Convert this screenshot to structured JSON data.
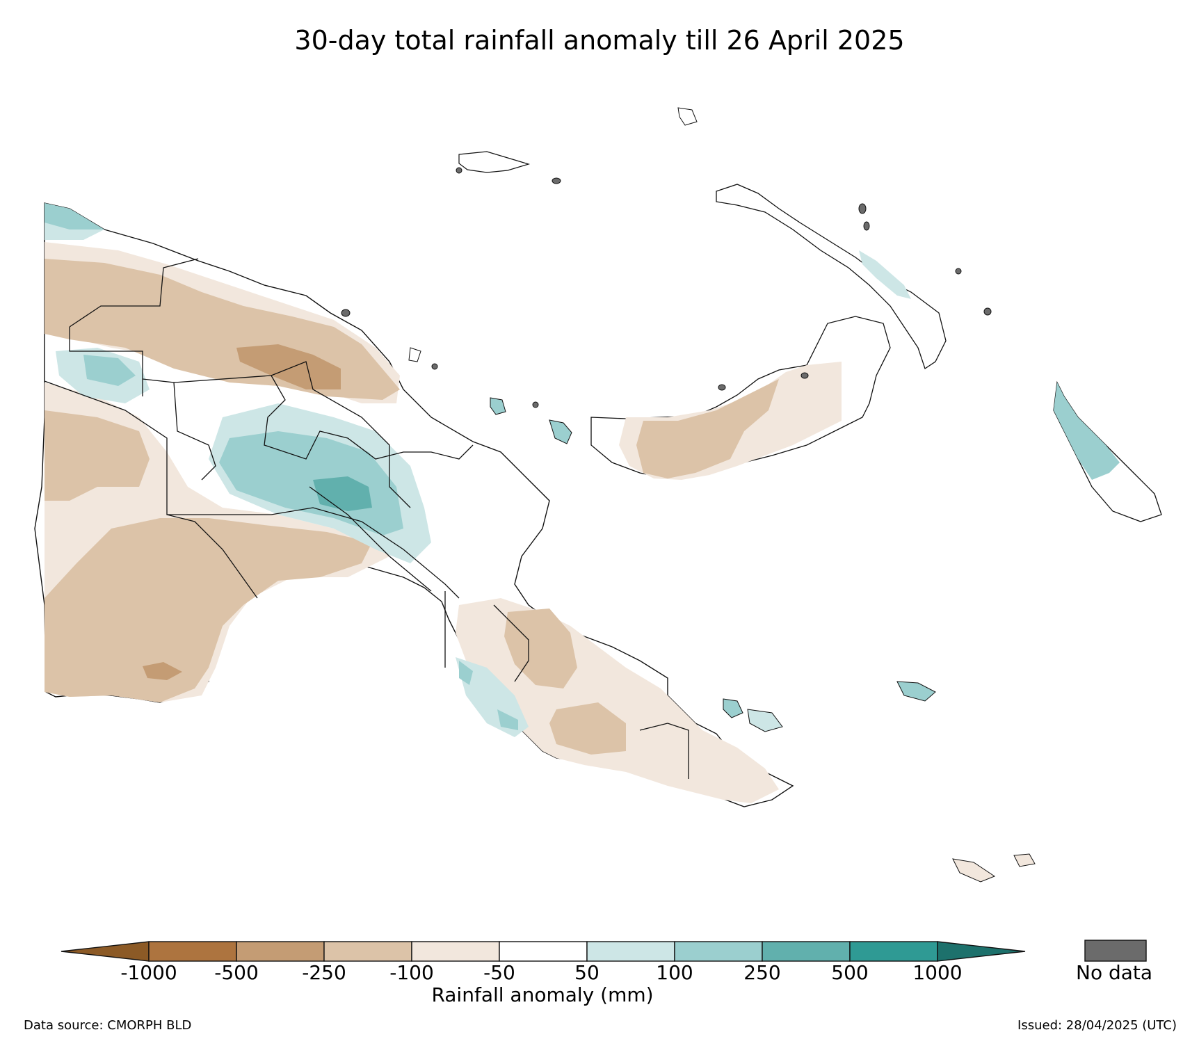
{
  "title": "30-day total rainfall anomaly till 26 April 2025",
  "colorbar": {
    "label": "Rainfall anomaly (mm)",
    "ticks": [
      "-1000",
      "-500",
      "-250",
      "-100",
      "-50",
      "50",
      "100",
      "250",
      "500",
      "1000"
    ],
    "colors": {
      "lt_neg1000": "#8c5a26",
      "neg1000_neg500": "#ad743f",
      "neg500_neg250": "#c49c74",
      "neg250_neg100": "#dcc3a8",
      "neg100_neg50": "#f2e7dd",
      "neg50_50": "#ffffff",
      "50_100": "#cde6e6",
      "100_250": "#9bcfcf",
      "250_500": "#61b0ad",
      "500_1000": "#2f9a94",
      "gt_1000": "#1d716c"
    },
    "no_data_label": "No data",
    "no_data_color": "#6b6b6b"
  },
  "footer": {
    "source": "Data source: CMORPH BLD",
    "issued": "Issued: 28/04/2025 (UTC)"
  }
}
